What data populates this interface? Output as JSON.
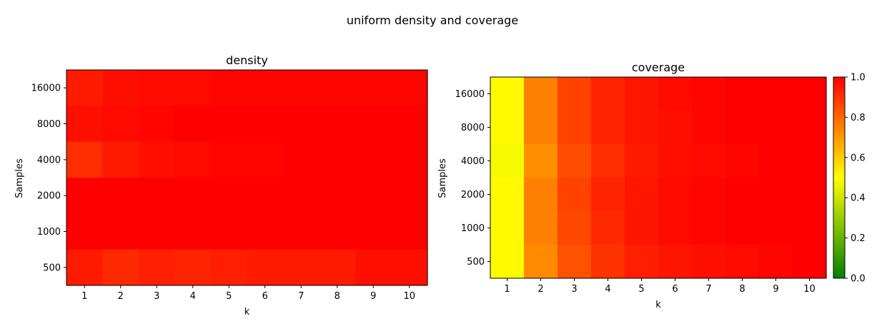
{
  "figure_title": "uniform density and coverage",
  "chart_data": [
    {
      "type": "heatmap",
      "title": "density",
      "xlabel": "k",
      "ylabel": "Samples",
      "x": [
        "1",
        "2",
        "3",
        "4",
        "5",
        "6",
        "7",
        "8",
        "9",
        "10"
      ],
      "y": [
        "16000",
        "8000",
        "4000",
        "2000",
        "1000",
        "500"
      ],
      "colormap": [
        "#008000",
        "#ffff00",
        "#ff0000"
      ],
      "vmin": 0,
      "vmax": 1,
      "values": [
        [
          0.95,
          0.97,
          0.98,
          0.98,
          0.99,
          0.99,
          0.99,
          0.99,
          0.99,
          0.99
        ],
        [
          0.97,
          0.98,
          0.99,
          1.0,
          1.0,
          1.0,
          1.0,
          1.0,
          1.0,
          1.0
        ],
        [
          0.91,
          0.95,
          0.97,
          0.98,
          0.99,
          0.99,
          1.0,
          1.0,
          1.0,
          1.0
        ],
        [
          1.0,
          1.0,
          1.0,
          1.0,
          1.0,
          1.0,
          1.0,
          1.0,
          1.0,
          1.0
        ],
        [
          1.0,
          1.0,
          1.0,
          1.0,
          1.0,
          1.0,
          1.0,
          1.0,
          1.0,
          1.0
        ],
        [
          0.95,
          0.92,
          0.94,
          0.93,
          0.94,
          0.95,
          0.95,
          0.95,
          0.97,
          0.97
        ]
      ]
    },
    {
      "type": "heatmap",
      "title": "coverage",
      "xlabel": "k",
      "ylabel": "Samples",
      "x": [
        "1",
        "2",
        "3",
        "4",
        "5",
        "6",
        "7",
        "8",
        "9",
        "10"
      ],
      "y": [
        "16000",
        "8000",
        "4000",
        "2000",
        "1000",
        "500"
      ],
      "colormap": [
        "#008000",
        "#ffff00",
        "#ff0000"
      ],
      "vmin": 0,
      "vmax": 1,
      "values": [
        [
          0.51,
          0.75,
          0.87,
          0.93,
          0.96,
          0.98,
          0.99,
          1.0,
          1.0,
          1.0
        ],
        [
          0.51,
          0.75,
          0.87,
          0.93,
          0.96,
          0.97,
          0.99,
          1.0,
          1.0,
          1.0
        ],
        [
          0.48,
          0.72,
          0.85,
          0.91,
          0.95,
          0.97,
          0.98,
          0.99,
          1.0,
          1.0
        ],
        [
          0.51,
          0.75,
          0.87,
          0.93,
          0.96,
          0.98,
          0.99,
          1.0,
          1.0,
          1.0
        ],
        [
          0.51,
          0.75,
          0.86,
          0.92,
          0.96,
          0.98,
          0.99,
          1.0,
          1.0,
          1.0
        ],
        [
          0.51,
          0.73,
          0.84,
          0.9,
          0.94,
          0.96,
          0.97,
          0.98,
          0.99,
          1.0
        ]
      ],
      "colorbar": {
        "ticks": [
          "0.0",
          "0.2",
          "0.4",
          "0.6",
          "0.8",
          "1.0"
        ]
      }
    }
  ]
}
